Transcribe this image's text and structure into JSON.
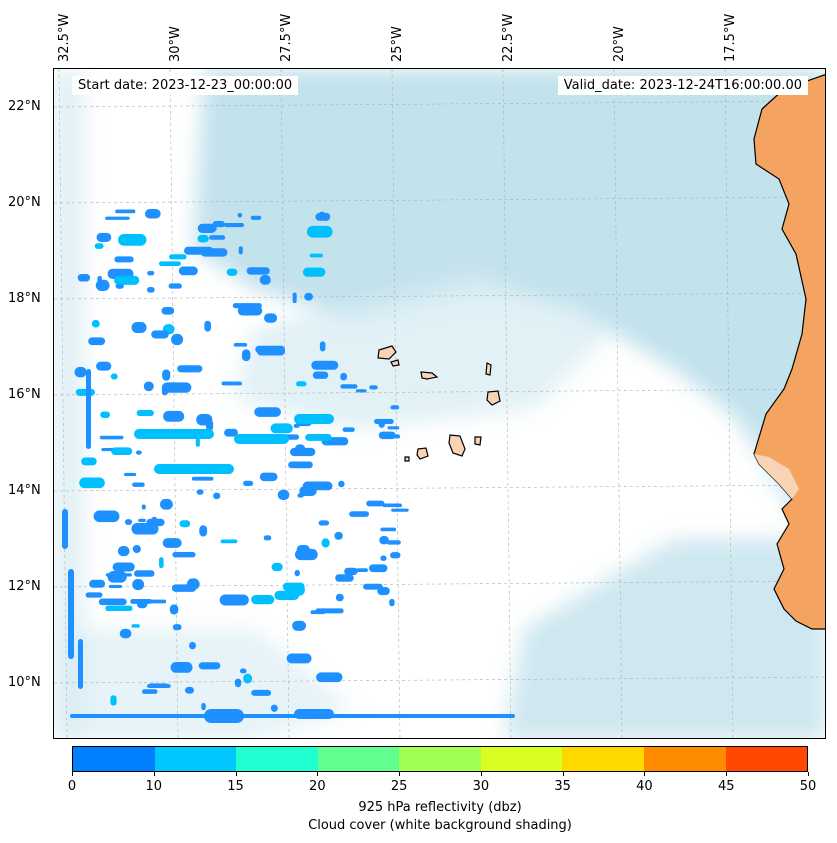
{
  "header": {
    "start_date": "Start date: 2023-12-23_00:00:00",
    "valid_date": "Valid_date: 2023-12-24T16:00:00.00"
  },
  "map": {
    "lon_labels": [
      "32.5°W",
      "30°W",
      "27.5°W",
      "25°W",
      "22.5°W",
      "20°W",
      "17.5°W"
    ],
    "lat_labels": [
      "22°N",
      "20°N",
      "18°N",
      "16°N",
      "14°N",
      "12°N",
      "10°N"
    ],
    "lon_range": [
      -32.5,
      -15.5
    ],
    "lat_range": [
      9,
      22.8
    ],
    "colors": {
      "land": "#f4a460",
      "island": "#f8d3b6",
      "cloud": "#aed8e6",
      "reflectivity_low": "#1e90ff",
      "reflectivity_mid": "#00bfff"
    }
  },
  "colorbar": {
    "ticks": [
      "0",
      "10",
      "15",
      "20",
      "25",
      "30",
      "35",
      "40",
      "45",
      "50"
    ],
    "colors": [
      "#0080ff",
      "#00c8ff",
      "#20ffd0",
      "#60ff90",
      "#a0ff50",
      "#d8ff20",
      "#ffd800",
      "#ff8c00",
      "#ff4800"
    ],
    "label": "925 hPa reflectivity (dbz)",
    "sublabel": "Cloud cover (white background shading)"
  }
}
